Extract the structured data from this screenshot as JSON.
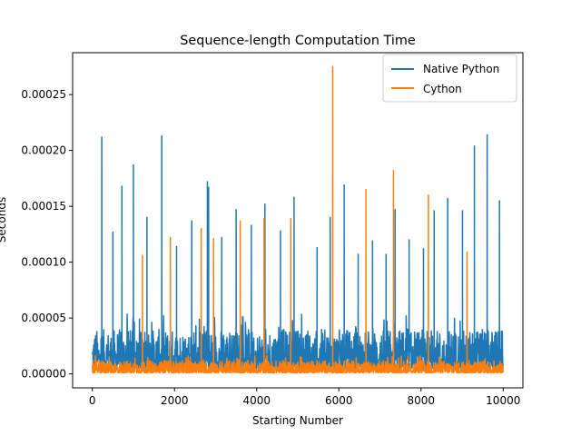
{
  "chart_data": {
    "type": "line",
    "title": "Sequence-length Computation Time",
    "xlabel": "Starting Number",
    "ylabel": "Seconds",
    "xlim": [
      -480,
      10480
    ],
    "ylim": [
      -1.25e-05,
      0.0002875
    ],
    "xticks": [
      0,
      2000,
      4000,
      6000,
      8000,
      10000
    ],
    "xtick_labels": [
      "0",
      "2000",
      "4000",
      "6000",
      "8000",
      "10000"
    ],
    "yticks": [
      0,
      5e-05,
      0.0001,
      0.00015,
      0.0002,
      0.00025
    ],
    "ytick_labels": [
      "0.00000",
      "0.00005",
      "0.00010",
      "0.00015",
      "0.00020",
      "0.00025"
    ],
    "grid": false,
    "legend": "top-right",
    "x_range": [
      1,
      10000
    ],
    "series": [
      {
        "name": "Native Python",
        "color": "#1f77b4",
        "baseline_band": [
          5e-06,
          4e-05
        ],
        "spikes": [
          [
            230,
            0.000212
          ],
          [
            500,
            0.000127
          ],
          [
            720,
            0.000168
          ],
          [
            1000,
            0.000187
          ],
          [
            1330,
            0.00014
          ],
          [
            1690,
            0.000213
          ],
          [
            2050,
            0.000114
          ],
          [
            2420,
            0.000137
          ],
          [
            2800,
            0.000172
          ],
          [
            2830,
            0.000167
          ],
          [
            3150,
            0.000122
          ],
          [
            3500,
            0.000147
          ],
          [
            3870,
            0.000133
          ],
          [
            4200,
            0.000152
          ],
          [
            4580,
            0.000128
          ],
          [
            4910,
            0.000158
          ],
          [
            5470,
            0.000113
          ],
          [
            5790,
            0.00014
          ],
          [
            6130,
            0.000169
          ],
          [
            6470,
            0.000107
          ],
          [
            6820,
            0.000119
          ],
          [
            7150,
            0.000107
          ],
          [
            7370,
            0.000147
          ],
          [
            7710,
            0.00012
          ],
          [
            8060,
            0.000112
          ],
          [
            8320,
            0.000146
          ],
          [
            8650,
            0.000157
          ],
          [
            9010,
            0.000146
          ],
          [
            9300,
            0.000204
          ],
          [
            9610,
            0.000214
          ],
          [
            9910,
            0.000155
          ]
        ]
      },
      {
        "name": "Cython",
        "color": "#ff7f0e",
        "baseline_band": [
          1e-06,
          1.2e-05
        ],
        "spikes": [
          [
            1220,
            0.000106
          ],
          [
            1900,
            0.000122
          ],
          [
            2650,
            0.00013
          ],
          [
            2950,
            0.000121
          ],
          [
            3600,
            0.000137
          ],
          [
            4180,
            0.000139
          ],
          [
            4830,
            0.000139
          ],
          [
            5850,
            0.000275
          ],
          [
            6660,
            0.000165
          ],
          [
            7330,
            0.000182
          ],
          [
            8180,
            0.00016
          ],
          [
            9120,
            0.000109
          ]
        ]
      }
    ]
  }
}
